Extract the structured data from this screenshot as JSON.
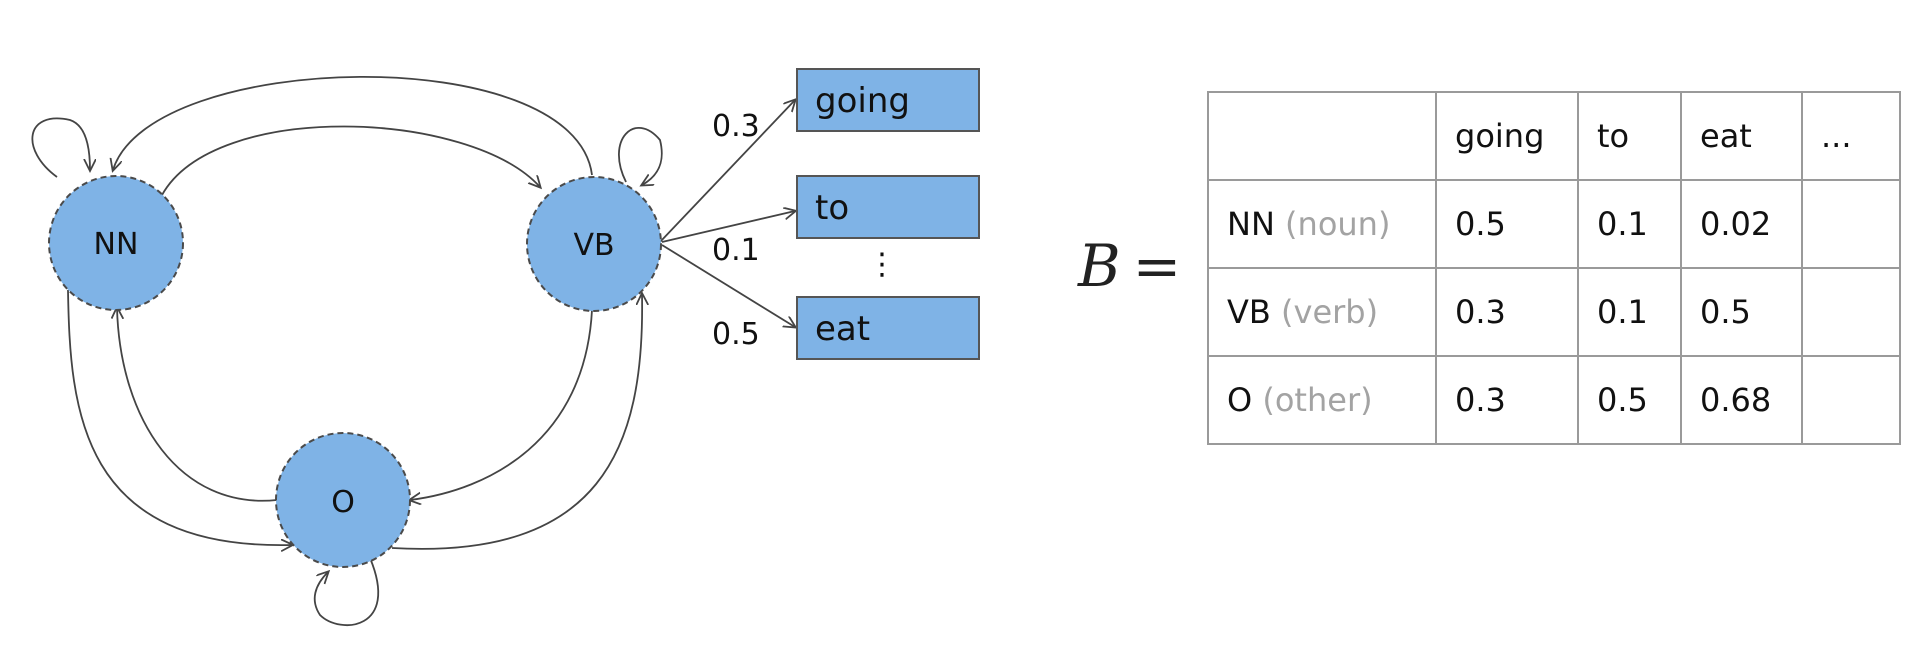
{
  "diagram": {
    "states": [
      {
        "id": "NN",
        "label": "NN"
      },
      {
        "id": "VB",
        "label": "VB"
      },
      {
        "id": "O",
        "label": "O"
      }
    ],
    "observations": [
      {
        "label": "going",
        "prob": "0.3"
      },
      {
        "label": "to",
        "prob": "0.1"
      },
      {
        "label": "eat",
        "prob": "0.5"
      }
    ],
    "ellipsis": "⋮",
    "colors": {
      "node_fill": "#7fb3e6",
      "node_stroke": "#4a4a4a",
      "box_fill": "#7fb3e6",
      "arrow": "#444444"
    }
  },
  "matrix": {
    "name": "B",
    "equals": "=",
    "headers": [
      "",
      "going",
      "to",
      "eat",
      "..."
    ],
    "rows": [
      {
        "tag": "NN",
        "desc": "(noun)",
        "values": [
          "0.5",
          "0.1",
          "0.02",
          ""
        ]
      },
      {
        "tag": "VB",
        "desc": "(verb)",
        "values": [
          "0.3",
          "0.1",
          "0.5",
          ""
        ]
      },
      {
        "tag": "O",
        "desc": "(other)",
        "values": [
          "0.3",
          "0.5",
          "0.68",
          ""
        ]
      }
    ]
  }
}
